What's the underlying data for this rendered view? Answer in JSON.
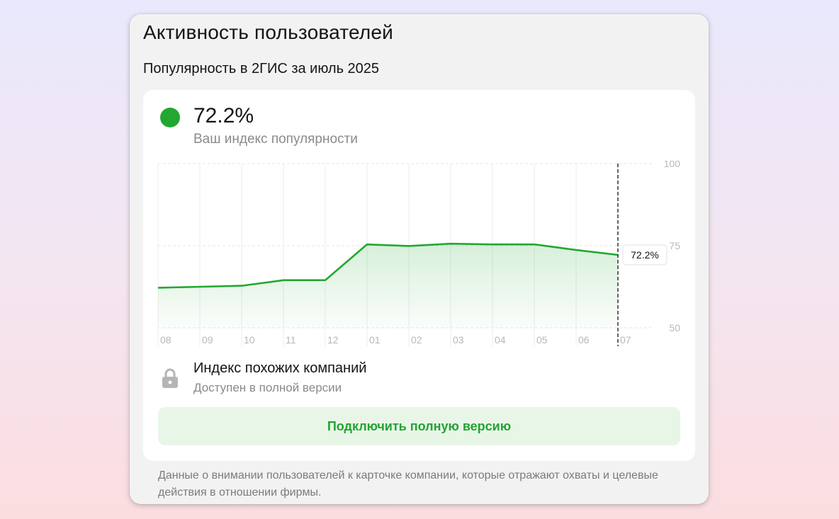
{
  "panel": {
    "title": "Активность пользователей",
    "subtitle": "Популярность в 2ГИС за июль 2025"
  },
  "popularity": {
    "value": "72.2%",
    "caption": "Ваш индекс популярности",
    "indicator_color": "#22a830"
  },
  "chart_data": {
    "type": "area",
    "categories": [
      "08",
      "09",
      "10",
      "11",
      "12",
      "01",
      "02",
      "03",
      "04",
      "05",
      "06",
      "07"
    ],
    "values": [
      62.2,
      62.5,
      62.8,
      64.5,
      64.5,
      75.4,
      74.9,
      75.6,
      75.4,
      75.4,
      73.7,
      72.2
    ],
    "ylim": [
      50,
      100
    ],
    "yticks": [
      "100",
      "75",
      "50"
    ],
    "ytick_values": [
      100,
      75,
      50
    ],
    "current_label": "72.2%",
    "line_color": "#22a830",
    "grid": true
  },
  "similar": {
    "title": "Индекс похожих компаний",
    "caption": "Доступен в полной версии",
    "icon": "lock-icon"
  },
  "upgrade_button": {
    "label": "Подключить полную версию"
  },
  "footnote": "Данные о внимании пользователей к карточке компании, которые отражают охваты и целевые действия в отношении фирмы."
}
